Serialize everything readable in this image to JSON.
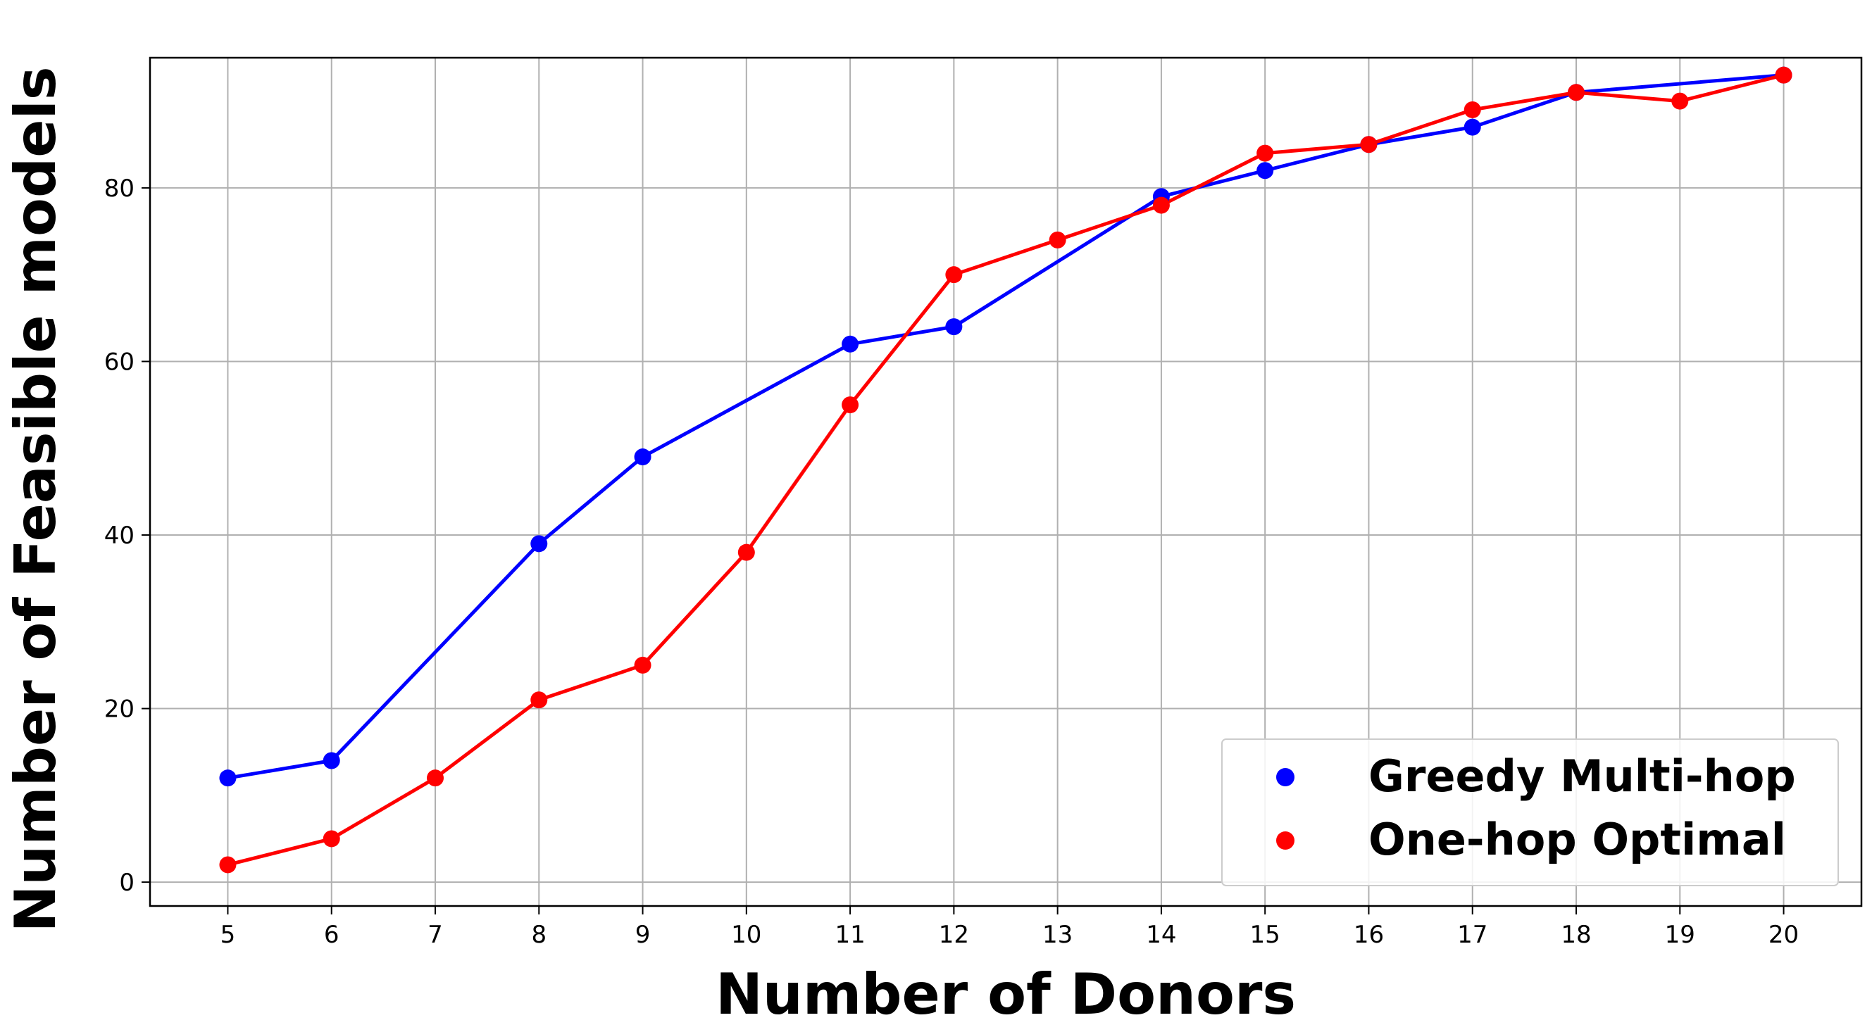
{
  "chart_data": {
    "type": "line",
    "title": "",
    "xlabel": "Number of Donors",
    "ylabel": "Number of Feasible models",
    "x": [
      5,
      6,
      7,
      8,
      9,
      10,
      11,
      12,
      13,
      14,
      15,
      16,
      17,
      18,
      19,
      20
    ],
    "xlim": [
      4.25,
      20.75
    ],
    "ylim": [
      -2.75,
      95
    ],
    "yticks": [
      0,
      20,
      40,
      60,
      80
    ],
    "grid": true,
    "legend_position": "lower-right",
    "series": [
      {
        "name": "Greedy Multi-hop",
        "color": "#0000ff",
        "x": [
          5,
          6,
          8,
          9,
          11,
          12,
          14,
          15,
          16,
          17,
          18,
          20
        ],
        "values": [
          12,
          14,
          39,
          49,
          62,
          64,
          79,
          82,
          85,
          87,
          91,
          93
        ]
      },
      {
        "name": "One-hop Optimal",
        "color": "#ff0000",
        "x": [
          5,
          6,
          7,
          8,
          9,
          10,
          11,
          12,
          13,
          14,
          15,
          16,
          17,
          18,
          19,
          20
        ],
        "values": [
          2,
          5,
          12,
          21,
          25,
          38,
          55,
          70,
          74,
          78,
          84,
          85,
          89,
          91,
          90,
          93
        ]
      }
    ]
  }
}
